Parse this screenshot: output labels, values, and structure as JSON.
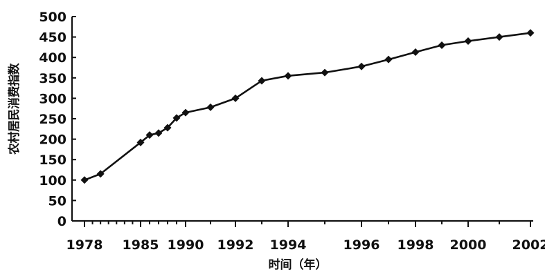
{
  "chart_data": {
    "type": "line",
    "title": "",
    "xlabel": "时间（年）",
    "ylabel": "农村居民消费指数",
    "xlim": [
      1978,
      2002
    ],
    "ylim": [
      0,
      500
    ],
    "grid": false,
    "x_ticks": [
      "1978",
      "1985",
      "1990",
      "1992",
      "1994",
      "1996",
      "1998",
      "2000",
      "2002"
    ],
    "y_ticks": [
      "0",
      "50",
      "100",
      "150",
      "200",
      "250",
      "300",
      "350",
      "400",
      "450",
      "500"
    ],
    "series": [
      {
        "x": [
          1978,
          1980,
          1985,
          1986,
          1987,
          1988,
          1989,
          1990,
          1991,
          1992,
          1993,
          1994,
          1995,
          1996,
          1997,
          1998,
          1999,
          2000,
          2001,
          2002
        ],
        "values": [
          100,
          115,
          192,
          210,
          215,
          228,
          252,
          265,
          278,
          300,
          343,
          355,
          363,
          378,
          395,
          413,
          430,
          440,
          450,
          460
        ]
      }
    ]
  }
}
